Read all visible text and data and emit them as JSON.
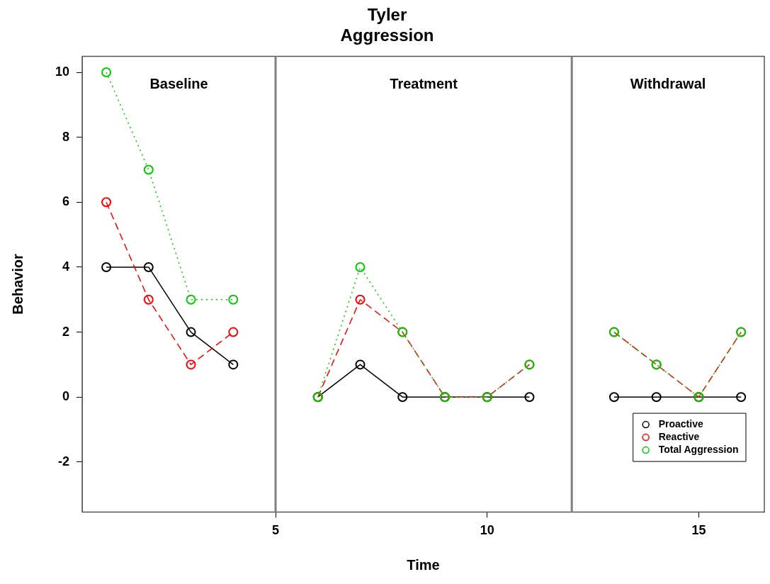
{
  "chart_data": {
    "type": "line",
    "title": "Tyler\nAggression",
    "xlabel": "Time",
    "ylabel": "Behavior",
    "x": [
      1,
      2,
      3,
      4,
      5,
      6,
      7,
      8,
      9,
      10,
      11,
      12,
      13,
      14,
      15,
      16
    ],
    "series": [
      {
        "name": "Proactive",
        "color": "#000000",
        "line_style": "solid",
        "values": [
          4,
          4,
          2,
          1,
          null,
          0,
          1,
          0,
          0,
          0,
          0,
          null,
          0,
          0,
          0,
          0
        ]
      },
      {
        "name": "Reactive",
        "color": "#ff0000",
        "line_style": "dashed",
        "values": [
          6,
          3,
          1,
          2,
          null,
          0,
          3,
          2,
          0,
          0,
          1,
          null,
          2,
          1,
          0,
          2
        ]
      },
      {
        "name": "Total Aggression",
        "color": "#00cc00",
        "line_style": "dotted",
        "values": [
          10,
          7,
          3,
          3,
          null,
          0,
          4,
          2,
          0,
          0,
          1,
          null,
          2,
          1,
          0,
          2
        ]
      }
    ],
    "xlim": [
      0.43,
      16.55
    ],
    "ylim": [
      -3.54,
      10.49
    ],
    "xticks": [
      5,
      10,
      15
    ],
    "yticks": [
      -2,
      0,
      2,
      4,
      6,
      8,
      10
    ],
    "ref_lines": [
      {
        "axis": "x",
        "value": 5,
        "color": "#808080"
      },
      {
        "axis": "x",
        "value": 12,
        "color": "#808080"
      }
    ],
    "annotations": [
      "Baseline",
      "Treatment",
      "Withdrawal"
    ],
    "grid": false,
    "legend": "bottom right",
    "marker": "circle"
  }
}
